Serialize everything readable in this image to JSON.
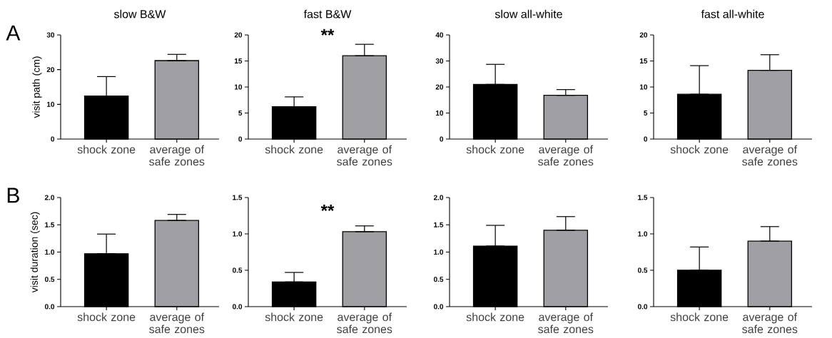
{
  "chart_data": [
    {
      "type": "bar",
      "title": "slow B&W",
      "ylabel": "visit path (cm)",
      "categories": [
        "shock zone",
        "average of safe zones"
      ],
      "values": [
        12.4,
        22.6
      ],
      "colors": [
        "#000000",
        "#a0a0a4"
      ],
      "errors": [
        [
          12.4,
          18.0
        ],
        [
          22.6,
          24.4
        ]
      ],
      "ylim": [
        0,
        30
      ],
      "yticks": [
        0,
        10,
        20,
        30
      ],
      "annotations": [
        "A"
      ]
    },
    {
      "type": "bar",
      "title": "fast B&W",
      "categories": [
        "shock zone",
        "average of safe zones"
      ],
      "values": [
        6.2,
        16.0
      ],
      "colors": [
        "#000000",
        "#a0a0a4"
      ],
      "errors": [
        [
          6.2,
          8.1
        ],
        [
          16.0,
          18.2
        ]
      ],
      "ylim": [
        0,
        20
      ],
      "yticks": [
        0,
        5,
        10,
        15,
        20
      ],
      "annotations": [
        "**"
      ]
    },
    {
      "type": "bar",
      "title": "slow all-white",
      "categories": [
        "shock zone",
        "average of safe zones"
      ],
      "values": [
        21.0,
        16.8
      ],
      "colors": [
        "#000000",
        "#a0a0a4"
      ],
      "errors": [
        [
          21.0,
          28.7
        ],
        [
          16.8,
          19.0
        ]
      ],
      "ylim": [
        0,
        40
      ],
      "yticks": [
        0,
        10,
        20,
        30,
        40
      ]
    },
    {
      "type": "bar",
      "title": "fast all-white",
      "categories": [
        "shock zone",
        "average of safe zones"
      ],
      "values": [
        8.6,
        13.2
      ],
      "colors": [
        "#000000",
        "#a0a0a4"
      ],
      "errors": [
        [
          8.6,
          14.1
        ],
        [
          13.2,
          16.2
        ]
      ],
      "ylim": [
        0,
        20
      ],
      "yticks": [
        0,
        5,
        10,
        15,
        20
      ]
    },
    {
      "type": "bar",
      "ylabel": "visit duration (sec)",
      "categories": [
        "shock zone",
        "average of safe zones"
      ],
      "values": [
        0.97,
        1.58
      ],
      "colors": [
        "#000000",
        "#a0a0a4"
      ],
      "errors": [
        [
          0.97,
          1.33
        ],
        [
          1.58,
          1.69
        ]
      ],
      "ylim": [
        0,
        2
      ],
      "yticks": [
        {
          "value": 0,
          "label": "0.0"
        },
        0.5,
        {
          "value": 1,
          "label": "1.0"
        },
        1.5,
        {
          "value": 2,
          "label": "2.0"
        }
      ],
      "annotations": [
        "B"
      ]
    },
    {
      "type": "bar",
      "categories": [
        "shock zone",
        "average of safe zones"
      ],
      "values": [
        0.34,
        1.03
      ],
      "colors": [
        "#000000",
        "#a0a0a4"
      ],
      "errors": [
        [
          0.34,
          0.47
        ],
        [
          1.03,
          1.11
        ]
      ],
      "ylim": [
        0,
        1.5
      ],
      "yticks": [
        {
          "value": 0,
          "label": "0.0"
        },
        0.5,
        {
          "value": 1,
          "label": "1.0"
        },
        1.5
      ],
      "annotations": [
        "**"
      ]
    },
    {
      "type": "bar",
      "categories": [
        "shock zone",
        "average of safe zones"
      ],
      "values": [
        1.11,
        1.4
      ],
      "colors": [
        "#000000",
        "#a0a0a4"
      ],
      "errors": [
        [
          1.11,
          1.49
        ],
        [
          1.4,
          1.65
        ]
      ],
      "ylim": [
        0,
        2
      ],
      "yticks": [
        {
          "value": 0,
          "label": "0.0"
        },
        0.5,
        {
          "value": 1,
          "label": "1.0"
        },
        1.5,
        {
          "value": 2,
          "label": "2.0"
        }
      ]
    },
    {
      "type": "bar",
      "categories": [
        "shock zone",
        "average of safe zones"
      ],
      "values": [
        0.5,
        0.9
      ],
      "colors": [
        "#000000",
        "#a0a0a4"
      ],
      "errors": [
        [
          0.5,
          0.82
        ],
        [
          0.9,
          1.1
        ]
      ],
      "ylim": [
        0,
        1.5
      ],
      "yticks": [
        {
          "value": 0,
          "label": "0.0"
        },
        0.5,
        {
          "value": 1,
          "label": "1.0"
        },
        1.5
      ]
    }
  ]
}
